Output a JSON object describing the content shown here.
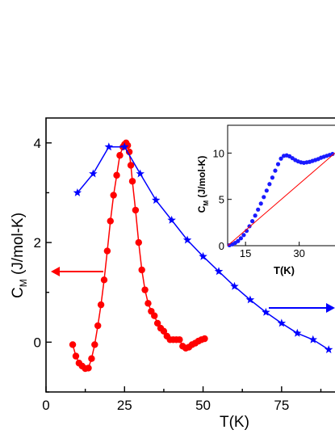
{
  "colors": {
    "series_red": "#ff0000",
    "series_blue": "#0000ff",
    "inset_blue": "#1a1aff",
    "inset_line": "#ff0000"
  },
  "chart_data": [
    {
      "type": "scatter",
      "xlabel": "T(K)",
      "ylabel_main": "C",
      "ylabel_sub": "M",
      "ylabel_unit": " (J/mol-K)",
      "xlim": [
        0,
        92
      ],
      "ylim": [
        -1,
        4.5
      ],
      "xticks": [
        0,
        25,
        50,
        75
      ],
      "yticks": [
        0,
        2,
        4
      ],
      "series": [
        {
          "marker": "circle",
          "color": "#ff0000",
          "axis": "left",
          "x": [
            8.5,
            9.5,
            10.5,
            11.5,
            12.5,
            13.5,
            14.5,
            15.5,
            16.5,
            17.5,
            18.5,
            19.5,
            20.5,
            21.5,
            22.5,
            23.5,
            24.5,
            25.0,
            25.5,
            26.0,
            26.5,
            27.0,
            27.5,
            28.5,
            29.5,
            30.5,
            31.5,
            32.5,
            33.5,
            34.5,
            35.5,
            36.5,
            37.5,
            38.5,
            39.5,
            40.5,
            41.5,
            42.5,
            43.5,
            44.5,
            45.5,
            46.5,
            47.5,
            48.5,
            49.5,
            50.5
          ],
          "y": [
            -0.05,
            -0.28,
            -0.42,
            -0.48,
            -0.53,
            -0.52,
            -0.33,
            -0.05,
            0.33,
            0.75,
            1.25,
            1.83,
            2.43,
            2.95,
            3.35,
            3.75,
            3.92,
            3.97,
            4.0,
            3.95,
            3.82,
            3.55,
            3.23,
            2.65,
            2.0,
            1.45,
            1.05,
            0.78,
            0.62,
            0.53,
            0.38,
            0.28,
            0.22,
            0.12,
            0.05,
            0.05,
            0.05,
            0.05,
            -0.08,
            -0.12,
            -0.1,
            -0.05,
            -0.02,
            0.02,
            0.05,
            0.07
          ]
        },
        {
          "marker": "star",
          "color": "#0000ff",
          "axis": "right",
          "x": [
            10,
            15,
            20,
            25,
            30,
            35,
            40,
            45,
            50,
            55,
            60,
            65,
            70,
            75,
            80,
            85,
            90
          ],
          "y": [
            3.0,
            3.38,
            3.92,
            3.92,
            3.38,
            2.85,
            2.45,
            2.05,
            1.72,
            1.42,
            1.12,
            0.85,
            0.6,
            0.38,
            0.18,
            0.05,
            -0.15
          ]
        }
      ],
      "annotations": {
        "left_arrow": "red, points left toward left axis",
        "right_arrow": "blue, points right toward right axis"
      }
    },
    {
      "type": "scatter",
      "xlabel": "T(K)",
      "ylabel_main": "C",
      "ylabel_sub": "M",
      "ylabel_unit": " (J/mol-K)",
      "xlim": [
        10,
        40
      ],
      "ylim": [
        0,
        13
      ],
      "xticks": [
        15,
        30
      ],
      "yticks": [
        0,
        5,
        10
      ],
      "series": [
        {
          "marker": "circle",
          "color": "#1a1aff",
          "x": [
            10.5,
            11.3,
            12.1,
            12.9,
            13.7,
            14.5,
            15.3,
            16.1,
            16.9,
            17.7,
            18.5,
            19.3,
            20.1,
            20.9,
            21.7,
            22.5,
            23.3,
            24.1,
            24.9,
            25.7,
            26.5,
            27.3,
            28.1,
            28.9,
            29.7,
            30.5,
            31.3,
            32.1,
            32.9,
            33.7,
            34.5,
            35.3,
            36.1,
            36.9,
            37.7,
            38.5,
            39.3
          ],
          "y": [
            0.05,
            0.15,
            0.3,
            0.5,
            0.8,
            1.15,
            1.6,
            2.1,
            2.65,
            3.25,
            3.9,
            4.55,
            5.25,
            5.95,
            6.65,
            7.35,
            8.1,
            8.8,
            9.4,
            9.7,
            9.75,
            9.65,
            9.45,
            9.25,
            9.1,
            9.0,
            8.95,
            9.0,
            9.05,
            9.15,
            9.25,
            9.35,
            9.5,
            9.6,
            9.7,
            9.8,
            9.9
          ]
        },
        {
          "marker": "line",
          "color": "#ff0000",
          "x": [
            10,
            40
          ],
          "y": [
            0,
            10
          ]
        }
      ]
    }
  ]
}
